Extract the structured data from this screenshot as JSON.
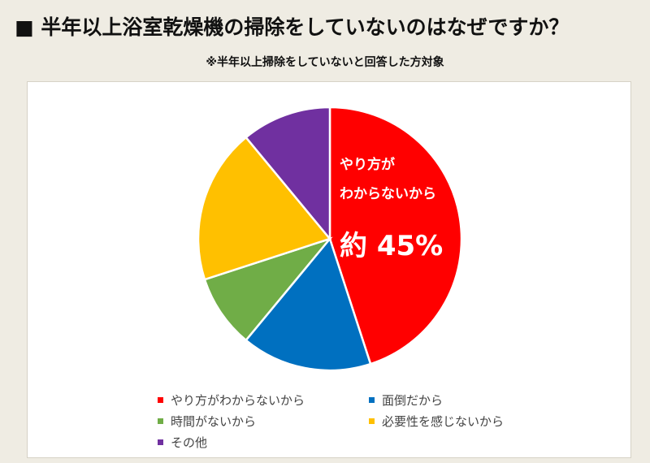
{
  "header": {
    "title": "■ 半年以上浴室乾燥機の掃除をしていないのはなぜですか？",
    "subtitle": "※半年以上掃除をしていないと回答した方対象"
  },
  "chart_data": {
    "type": "pie",
    "title": "半年以上浴室乾燥機の掃除をしていないのはなぜですか？",
    "subtitle": "※半年以上掃除をしていないと回答した方対象",
    "start_angle_deg": 0,
    "direction": "clockwise",
    "slices": [
      {
        "label": "やり方がわからないから",
        "value": 45,
        "color": "#ff0000"
      },
      {
        "label": "面倒だから",
        "value": 16,
        "color": "#0070c0"
      },
      {
        "label": "時間がないから",
        "value": 9,
        "color": "#70ad47"
      },
      {
        "label": "必要性を感じないから",
        "value": 19,
        "color": "#ffc000"
      },
      {
        "label": "その他",
        "value": 11,
        "color": "#7030a0"
      }
    ],
    "callout": {
      "slice_index": 0,
      "label_lines": [
        "やり方が",
        "わからないから"
      ],
      "value_text": "約 45%"
    },
    "legend_position": "bottom"
  }
}
